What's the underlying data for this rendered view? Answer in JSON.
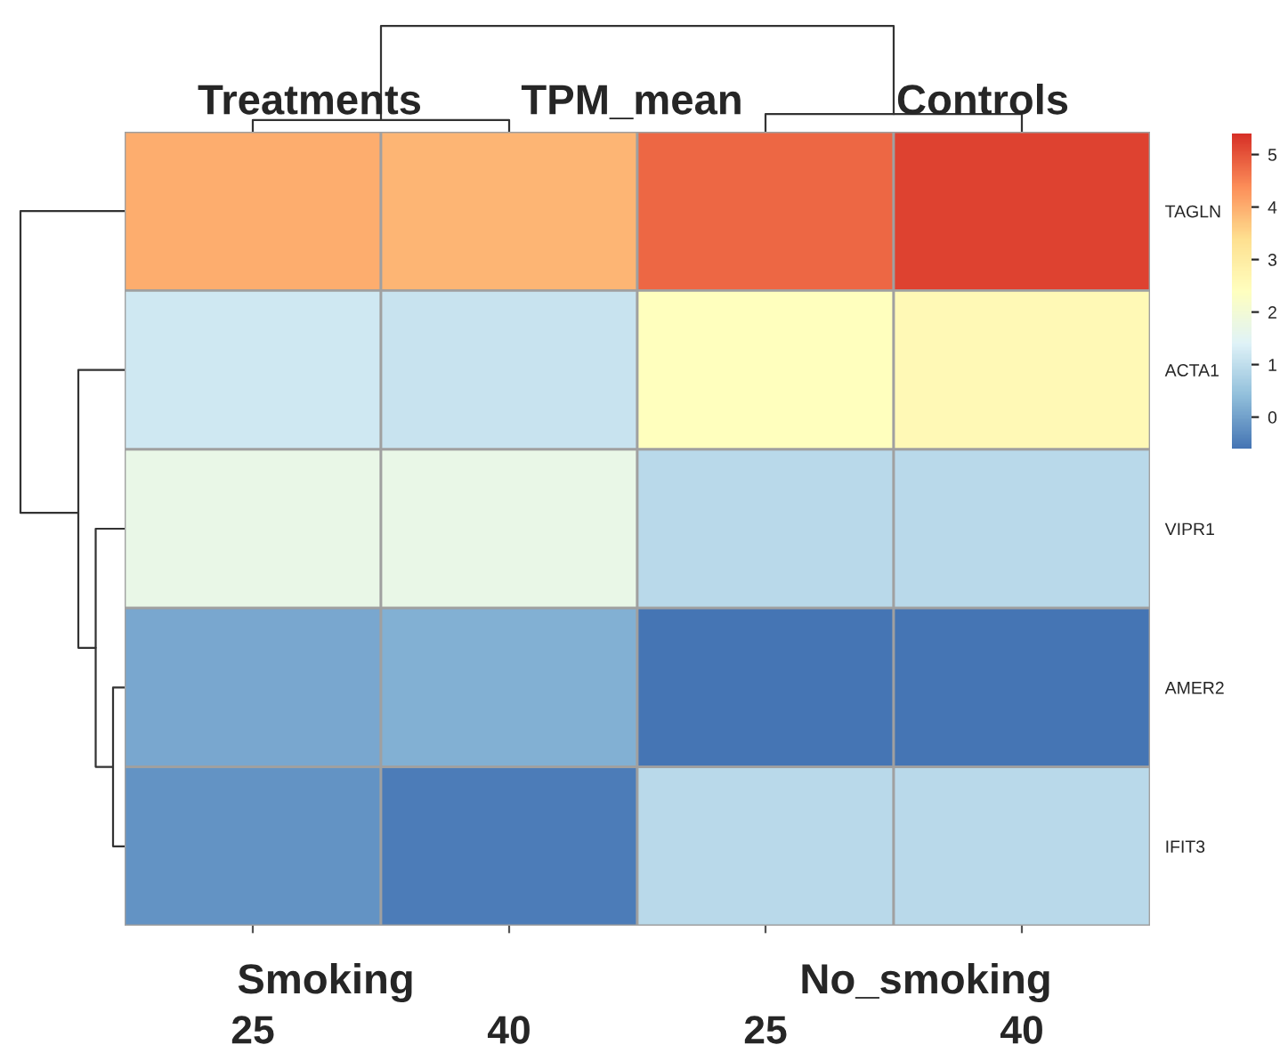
{
  "chart_data": {
    "type": "heatmap",
    "categories": [
      "25",
      "40",
      "25",
      "40"
    ],
    "y_categories": [
      "TAGLN",
      "ACTA1",
      "VIPR1",
      "AMER2",
      "IFIT3"
    ],
    "cells": [
      [
        4.0,
        3.9,
        4.8,
        5.2
      ],
      [
        1.2,
        1.1,
        2.4,
        2.6
      ],
      [
        1.7,
        1.7,
        0.9,
        0.9
      ],
      [
        0.1,
        0.2,
        -0.6,
        -0.6
      ],
      [
        -0.2,
        -0.5,
        0.9,
        0.9
      ]
    ],
    "clim": [
      -0.6,
      5.4
    ],
    "cticks": [
      0,
      1,
      2,
      3,
      4,
      5
    ],
    "annotations": [
      "Treatments",
      "TPM_mean",
      "Controls",
      "Smoking",
      "No_smoking"
    ]
  }
}
